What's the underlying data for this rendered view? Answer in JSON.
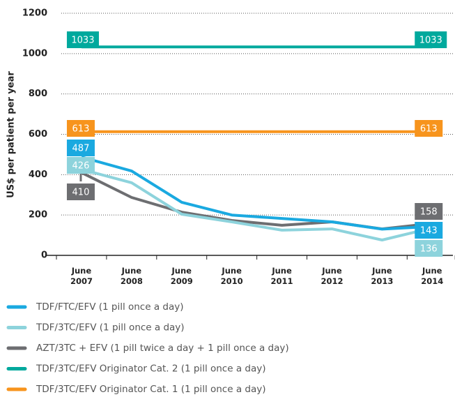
{
  "chart_data": {
    "type": "line",
    "y_label": "US$ per patient per year",
    "categories": [
      "June 2007",
      "June 2008",
      "June 2009",
      "June 2010",
      "June 2011",
      "June 2012",
      "June 2013",
      "June 2014"
    ],
    "ylim": [
      0,
      1200
    ],
    "yticks": [
      0,
      200,
      400,
      600,
      800,
      1000,
      1200
    ],
    "grid": true,
    "series": [
      {
        "name": "TDF/FTC/EFV (1 pill once a day)",
        "color": "#1aa9e0",
        "values": [
          487,
          418,
          263,
          200,
          183,
          166,
          130,
          143
        ]
      },
      {
        "name": "TDF/3TC/EFV (1 pill once a day)",
        "color": "#8dd3dc",
        "values": [
          426,
          360,
          204,
          166,
          125,
          131,
          76,
          136
        ]
      },
      {
        "name": "AZT/3TC + EFV (1 pill twice a day + 1 pill once a day)",
        "color": "#6d6e71",
        "values": [
          410,
          287,
          214,
          173,
          149,
          166,
          131,
          158
        ]
      },
      {
        "name": "TDF/3TC/EFV Originator Cat. 2 (1 pill once a day)",
        "color": "#00a99d",
        "values": [
          1033,
          1033,
          1033,
          1033,
          1033,
          1033,
          1033,
          1033
        ]
      },
      {
        "name": "TDF/3TC/EFV Originator Cat. 1 (1 pill once a day)",
        "color": "#f7941d",
        "values": [
          613,
          613,
          613,
          613,
          613,
          613,
          613,
          613
        ]
      }
    ]
  }
}
